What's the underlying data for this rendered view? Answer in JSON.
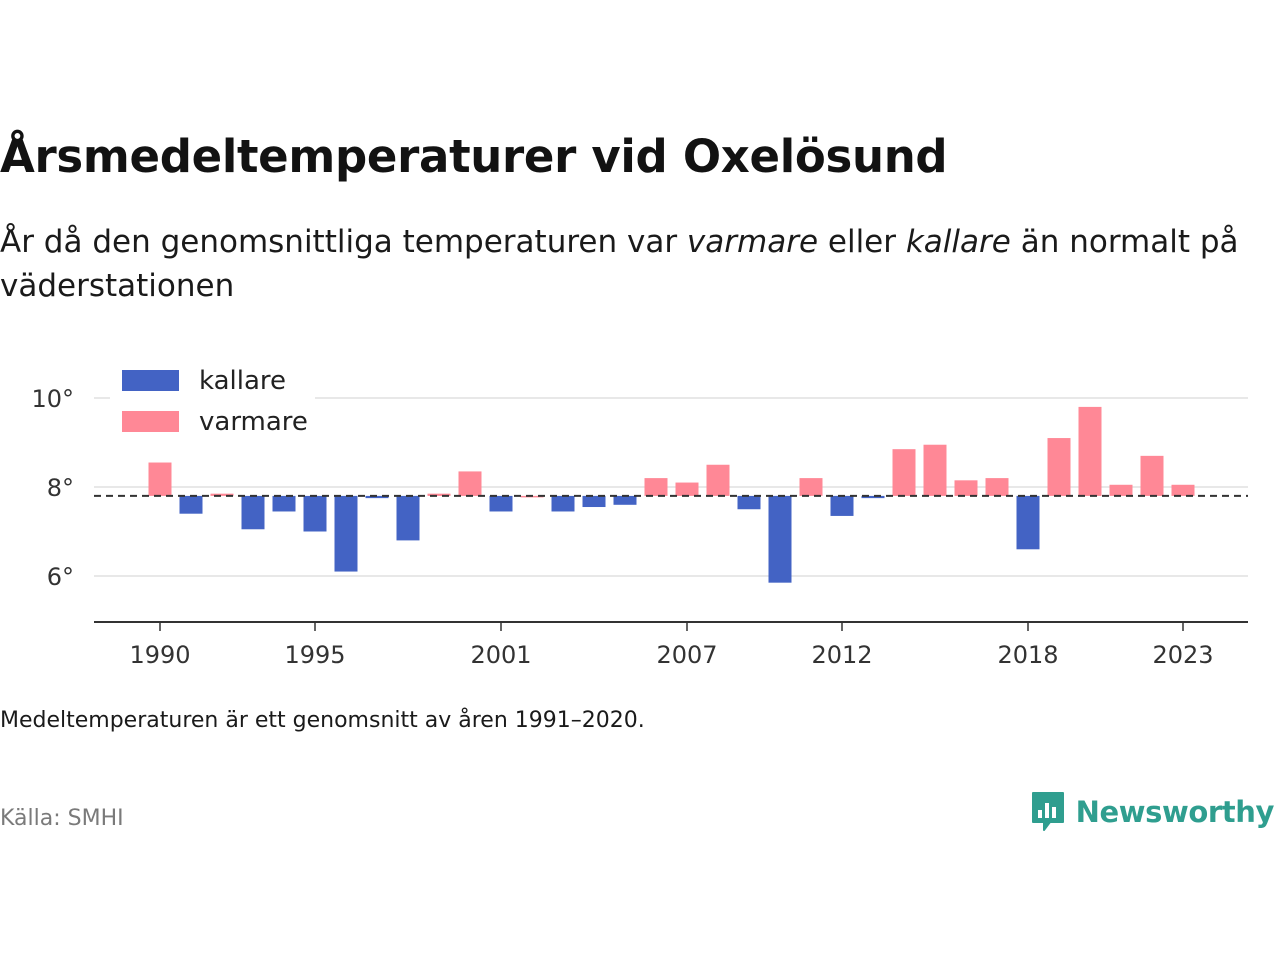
{
  "title": "Årsmedeltemperaturer vid Oxelösund",
  "subtitle": {
    "part1": "År då den genomsnittliga temperaturen var ",
    "warm_word": "varmare",
    "part2": " eller ",
    "cold_word": "kallare",
    "part3": " än normalt på väderstationen"
  },
  "note": "Medeltemperaturen är ett genomsnitt av åren 1991–2020.",
  "source": "Källa: SMHI",
  "brand": "Newsworthy",
  "colors": {
    "kallare": "#4363c4",
    "varmare": "#ff8896",
    "baseline": "#333333",
    "grid": "#e0e0e0"
  },
  "chart_data": {
    "type": "bar",
    "baseline": 7.8,
    "ylim": [
      5.0,
      10.5
    ],
    "yticks": [
      6,
      8,
      10
    ],
    "ytick_suffix": "°",
    "xticks": [
      1990,
      1995,
      2001,
      2007,
      2012,
      2018,
      2023
    ],
    "legend": [
      {
        "name": "kallare",
        "color_key": "kallare"
      },
      {
        "name": "varmare",
        "color_key": "varmare"
      }
    ],
    "legend_position": "top-left",
    "grid": true,
    "years": [
      1990,
      1991,
      1992,
      1993,
      1994,
      1995,
      1996,
      1997,
      1998,
      1999,
      2000,
      2001,
      2002,
      2003,
      2004,
      2005,
      2006,
      2007,
      2008,
      2009,
      2010,
      2011,
      2012,
      2013,
      2014,
      2015,
      2016,
      2017,
      2018,
      2019,
      2020,
      2021,
      2022,
      2023
    ],
    "values": [
      8.55,
      7.4,
      7.85,
      7.05,
      7.45,
      7.0,
      6.1,
      7.75,
      6.8,
      7.85,
      8.35,
      7.45,
      7.8,
      7.45,
      7.55,
      7.6,
      8.2,
      8.1,
      8.5,
      7.5,
      5.85,
      8.2,
      7.35,
      7.75,
      8.85,
      8.95,
      8.15,
      8.2,
      6.6,
      9.1,
      9.8,
      8.05,
      8.7,
      8.05
    ]
  }
}
